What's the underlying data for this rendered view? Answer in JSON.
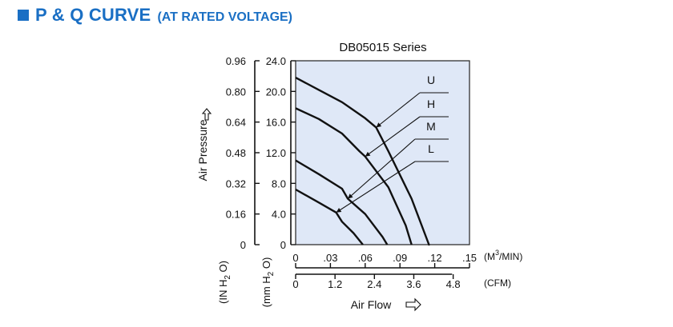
{
  "header": {
    "title": "P & Q CURVE",
    "subtitle": "(AT RATED VOLTAGE)",
    "accent_color": "#1a6fc4",
    "icon": "square-bullet-icon"
  },
  "chart_data": {
    "type": "line",
    "title": "DB05015 Series",
    "xlabel": "Air Flow",
    "ylabel": "Air Pressure",
    "x_primary_unit": "(M3/MIN)",
    "x_secondary_unit": "(CFM)",
    "y_primary_unit": "(mm H2O)",
    "y_secondary_unit": "(IN H2O)",
    "xlim": [
      0,
      0.15
    ],
    "ylim": [
      0,
      24
    ],
    "grid": true,
    "x_ticks": [
      "0",
      ".03",
      ".06",
      ".09",
      ".12",
      ".15"
    ],
    "x_ticks_cfm": [
      "0",
      "1.2",
      "2.4",
      "3.6",
      "4.8"
    ],
    "y_ticks_mm": [
      "0",
      "4.0",
      "8.0",
      "12.0",
      "16.0",
      "20.0",
      "24.0"
    ],
    "y_ticks_in": [
      "0",
      "0.16",
      "0.32",
      "0.48",
      "0.64",
      "0.80",
      "0.96"
    ],
    "series": [
      {
        "name": "U",
        "x": [
          0,
          0.02,
          0.04,
          0.06,
          0.0695,
          0.08,
          0.1,
          0.115,
          0.1145
        ],
        "y": [
          21.8,
          20.2,
          18.6,
          16.5,
          15.3,
          12.2,
          6.0,
          0,
          0
        ]
      },
      {
        "name": "H",
        "x": [
          0,
          0.02,
          0.04,
          0.055,
          0.06,
          0.08,
          0.095,
          0.1
        ],
        "y": [
          17.8,
          16.4,
          14.5,
          12.2,
          11.5,
          7.5,
          2.5,
          0
        ]
      },
      {
        "name": "M",
        "x": [
          0,
          0.02,
          0.04,
          0.045,
          0.06,
          0.075,
          0.079
        ],
        "y": [
          11.0,
          9.2,
          7.3,
          6.0,
          4.0,
          1.0,
          0
        ]
      },
      {
        "name": "L",
        "x": [
          0,
          0.02,
          0.035,
          0.04,
          0.05,
          0.058
        ],
        "y": [
          7.2,
          5.5,
          4.2,
          3.0,
          1.5,
          0
        ]
      }
    ],
    "labels": [
      "U",
      "H",
      "M",
      "L"
    ],
    "arrow_icon": "arrow-right-icon",
    "updown_icon": "arrow-up-icon"
  }
}
